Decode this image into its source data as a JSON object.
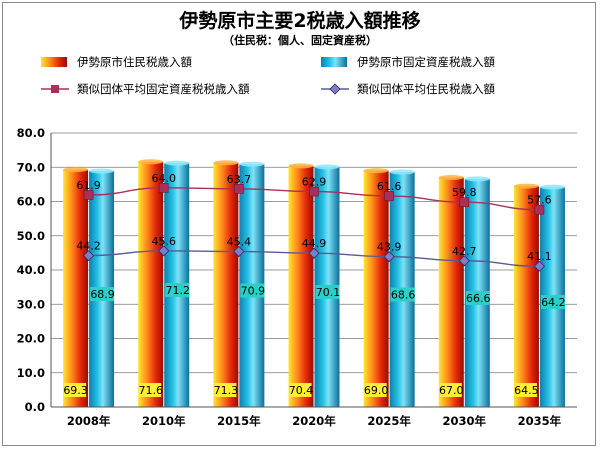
{
  "chart_data": {
    "type": "bar",
    "title": "伊勢原市主要2税歳入額推移",
    "subtitle": "（住民税：個人、固定資産税）",
    "categories": [
      "2008年",
      "2010年",
      "2015年",
      "2020年",
      "2025年",
      "2030年",
      "2035年"
    ],
    "ylim": [
      0,
      80
    ],
    "yticks": [
      0,
      10,
      20,
      30,
      40,
      50,
      60,
      70,
      80
    ],
    "ytick_labels": [
      "0.0",
      "10.0",
      "20.0",
      "30.0",
      "40.0",
      "50.0",
      "60.0",
      "70.0",
      "80.0"
    ],
    "grid": true,
    "legend_position": "top",
    "series": [
      {
        "name": "伊勢原市住民税歳入額",
        "kind": "bar",
        "color": "#e8400c",
        "values": [
          69.3,
          71.6,
          71.3,
          70.4,
          69.0,
          67.0,
          64.5
        ],
        "labels": [
          "69.3",
          "71.6",
          "71.3",
          "70.4",
          "69.0",
          "67.0",
          "64.5"
        ]
      },
      {
        "name": "伊勢原市固定資産税歳入額",
        "kind": "bar",
        "color": "#19b4d8",
        "values": [
          68.9,
          71.2,
          70.9,
          70.1,
          68.6,
          66.6,
          64.2
        ],
        "labels": [
          "68.9",
          "71.2",
          "70.9",
          "70.1",
          "68.6",
          "66.6",
          "64.2"
        ]
      },
      {
        "name": "類似団体平均固定資産税税歳入額",
        "kind": "line",
        "color": "#a8305a",
        "marker": "square",
        "values": [
          61.9,
          64.0,
          63.7,
          62.9,
          61.6,
          59.8,
          57.6
        ],
        "labels": [
          "61.9",
          "64.0",
          "63.7",
          "62.9",
          "61.6",
          "59.8",
          "57.6"
        ]
      },
      {
        "name": "類似団体平均住民税歳入額",
        "kind": "line",
        "color": "#5a5a96",
        "marker": "diamond",
        "values": [
          44.2,
          45.6,
          45.4,
          44.9,
          43.9,
          42.7,
          41.1
        ],
        "labels": [
          "44.2",
          "45.6",
          "45.4",
          "44.9",
          "43.9",
          "42.7",
          "41.1"
        ]
      }
    ]
  }
}
